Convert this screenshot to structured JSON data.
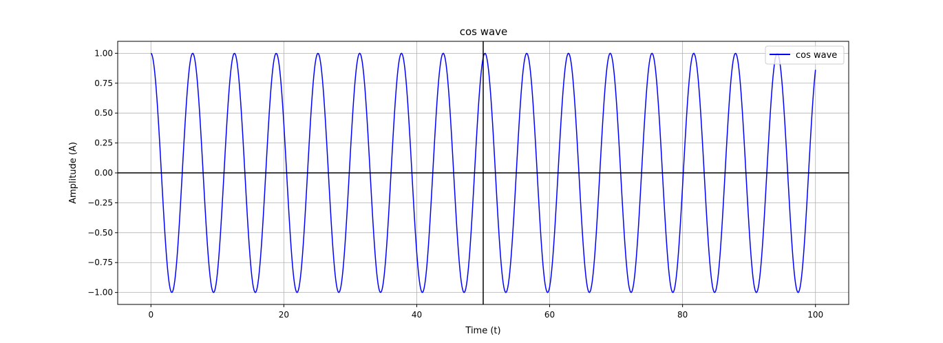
{
  "chart_data": {
    "type": "line",
    "title": "cos wave",
    "xlabel": "Time (t)",
    "ylabel": "Amplitude (A)",
    "xlim": [
      -5,
      105
    ],
    "ylim": [
      -1.1,
      1.1
    ],
    "xticks": [
      0,
      20,
      40,
      60,
      80,
      100
    ],
    "yticks": [
      1.0,
      0.75,
      0.5,
      0.25,
      0.0,
      -0.25,
      -0.5,
      -0.75,
      -1.0
    ],
    "xtick_labels": [
      "0",
      "20",
      "40",
      "60",
      "80",
      "100"
    ],
    "ytick_labels": [
      "1.00",
      "0.75",
      "0.50",
      "0.25",
      "0.00",
      "−0.25",
      "−0.50",
      "−0.75",
      "−1.00"
    ],
    "grid": true,
    "legend_position": "top-right",
    "reference_lines": {
      "horizontal_y": 0,
      "vertical_x": 50
    },
    "series": [
      {
        "name": "cos wave",
        "color": "#0000ff",
        "function": "cos(t)",
        "x_start": 0,
        "x_end": 100,
        "samples": 1000
      }
    ]
  }
}
